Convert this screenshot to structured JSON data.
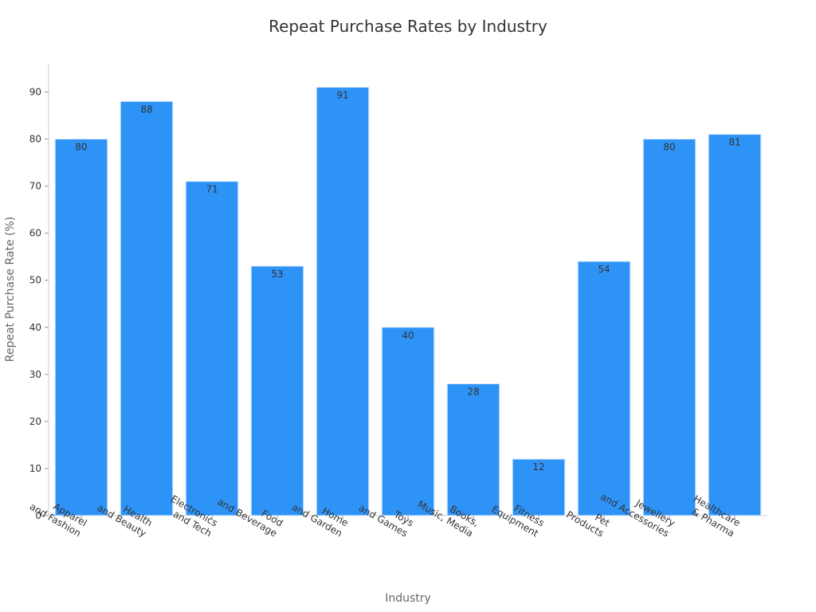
{
  "chart_data": {
    "type": "bar",
    "title": "Repeat Purchase Rates by Industry",
    "xlabel": "Industry",
    "ylabel": "Repeat Purchase Rate (%)",
    "categories": [
      [
        "Apparel",
        "and Fashion"
      ],
      [
        "Health",
        "and Beauty"
      ],
      [
        "Electronics",
        "and Tech"
      ],
      [
        "Food",
        "and Beverage"
      ],
      [
        "Home",
        "and Garden"
      ],
      [
        "Toys",
        "and Games"
      ],
      [
        "Books,",
        "Music, Media"
      ],
      [
        "Fitness",
        "Equipment"
      ],
      [
        "Pet",
        "Products"
      ],
      [
        "Jewellery",
        "and Accessories"
      ],
      [
        "Healthcare",
        "& Pharma"
      ]
    ],
    "values": [
      80,
      88,
      71,
      53,
      91,
      40,
      28,
      12,
      54,
      80,
      81
    ],
    "ylim": [
      0,
      96
    ],
    "yticks": [
      0,
      10,
      20,
      30,
      40,
      50,
      60,
      70,
      80,
      90
    ],
    "grid": false,
    "legend": "none",
    "colors": {
      "bar": "#2e93f7",
      "bar_edge": "#d6e8fb",
      "axis": "#cccccc",
      "text": "#333333",
      "muted_text": "#666666"
    }
  }
}
